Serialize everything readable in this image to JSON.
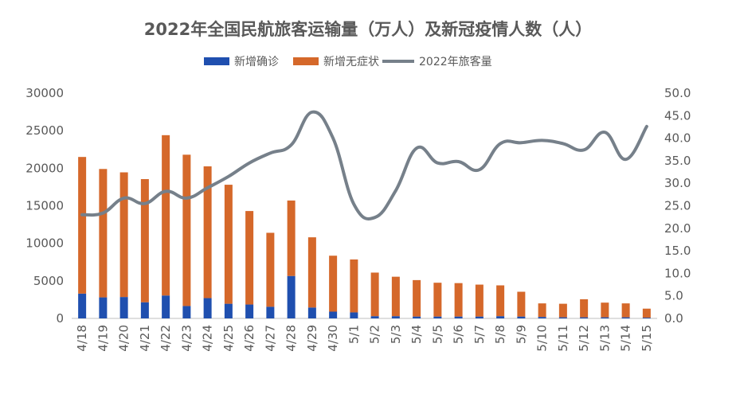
{
  "chart_data": {
    "type": "bar+line",
    "title": "2022年全国民航旅客运输量（万人）及新冠疫情人数（人）",
    "categories": [
      "4/18",
      "4/19",
      "4/20",
      "4/21",
      "4/22",
      "4/23",
      "4/24",
      "4/25",
      "4/26",
      "4/27",
      "4/28",
      "4/29",
      "4/30",
      "5/1",
      "5/2",
      "5/3",
      "5/4",
      "5/5",
      "5/6",
      "5/7",
      "5/8",
      "5/9",
      "5/10",
      "5/11",
      "5/12",
      "5/13",
      "5/14",
      "5/15"
    ],
    "series": [
      {
        "name": "新增确诊",
        "type": "bar",
        "axis": "left",
        "color": "#1F4FAF",
        "values": [
          3300,
          2800,
          2850,
          2150,
          3050,
          1650,
          2700,
          1950,
          1850,
          1550,
          5650,
          1450,
          900,
          800,
          300,
          300,
          250,
          250,
          250,
          250,
          300,
          250,
          200,
          150,
          150,
          150,
          150,
          100
        ]
      },
      {
        "name": "新增无症状",
        "type": "bar",
        "axis": "left",
        "color": "#D5682A",
        "values": [
          18200,
          17100,
          16600,
          16400,
          21350,
          20150,
          17550,
          15850,
          12450,
          9850,
          10050,
          9350,
          7450,
          7050,
          5800,
          5250,
          4850,
          4500,
          4450,
          4250,
          4100,
          3300,
          1800,
          1800,
          2400,
          1950,
          1850,
          1200
        ]
      },
      {
        "name": "2022年旅客量",
        "type": "line",
        "axis": "right",
        "color": "#76808A",
        "values": [
          23.0,
          23.4,
          26.7,
          25.5,
          28.2,
          26.7,
          29.0,
          31.5,
          34.5,
          36.7,
          38.5,
          45.8,
          40.0,
          25.3,
          22.4,
          28.4,
          37.8,
          34.5,
          34.8,
          33.0,
          38.8,
          39.0,
          39.5,
          38.8,
          37.4,
          41.3,
          35.3,
          42.6
        ]
      }
    ],
    "yleft": {
      "min": 0,
      "max": 30000,
      "ticks": [
        "0",
        "5000",
        "10000",
        "15000",
        "20000",
        "25000",
        "30000"
      ]
    },
    "yright": {
      "min": 0,
      "max": 50,
      "ticks": [
        "0.0",
        "5.0",
        "10.0",
        "15.0",
        "20.0",
        "25.0",
        "30.0",
        "35.0",
        "40.0",
        "45.0",
        "50.0"
      ]
    },
    "legend_position": "top-center",
    "grid": false
  }
}
